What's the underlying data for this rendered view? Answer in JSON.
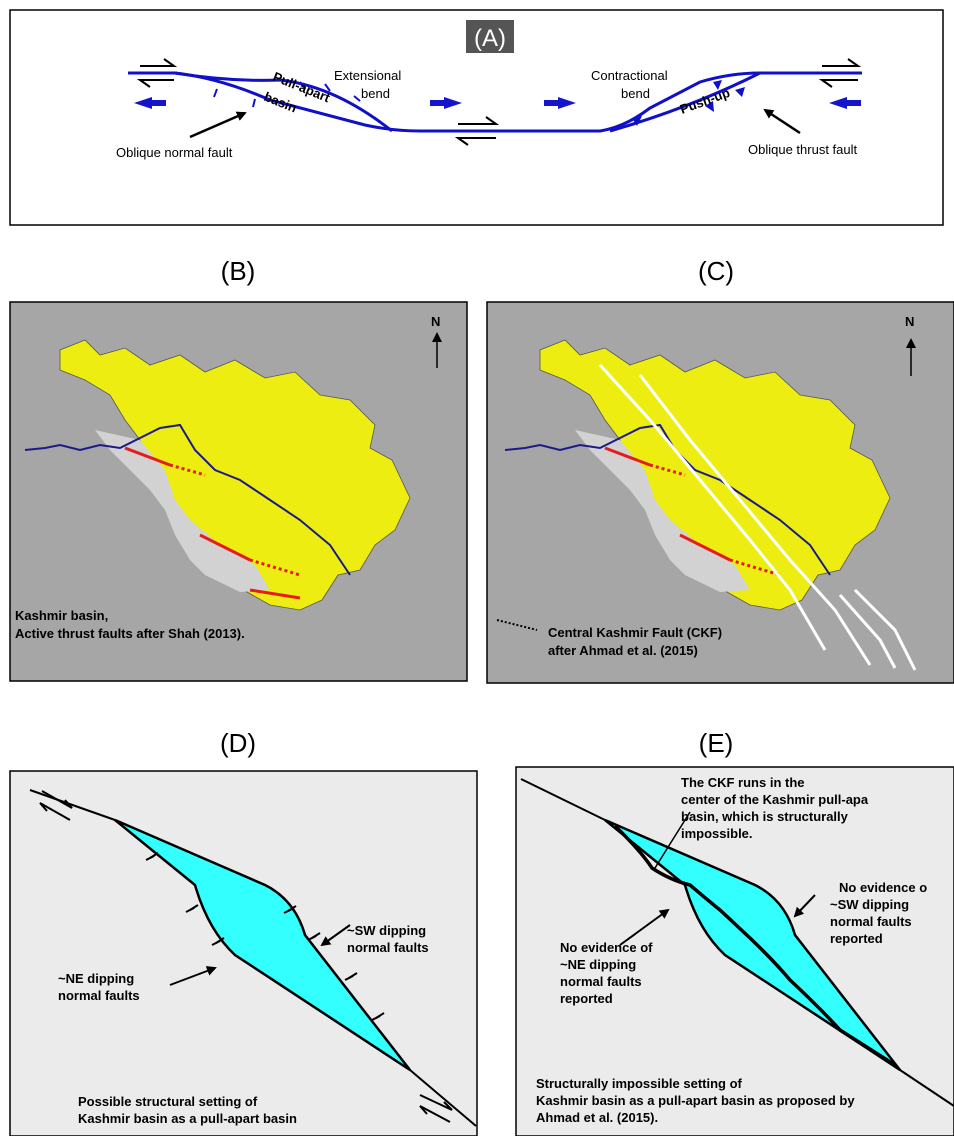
{
  "panel_a": {
    "tag": "(A)",
    "extensional_bend": [
      "Extensional",
      "bend"
    ],
    "contractional_bend": [
      "Contractional",
      "bend"
    ],
    "pull_apart": [
      "Pull-apart",
      "basin"
    ],
    "push_up": "Push-up",
    "oblique_normal_fault": "Oblique normal fault",
    "oblique_thrust_fault": "Oblique thrust fault"
  },
  "panel_b": {
    "title": "(B)",
    "north": "N",
    "caption": [
      "Kashmir basin,",
      "Active thrust faults after Shah (2013)."
    ]
  },
  "panel_c": {
    "title": "(C)",
    "north": "N",
    "caption": [
      "Central Kashmir Fault (CKF)",
      "after Ahmad et al. (2015)"
    ]
  },
  "panel_d": {
    "title": "(D)",
    "sw_label": [
      "~SW dipping",
      "normal faults"
    ],
    "ne_label": [
      "~NE dipping",
      "normal faults"
    ],
    "caption": [
      "Possible structural setting of",
      "Kashmir basin as a pull-apart basin"
    ]
  },
  "panel_e": {
    "title": "(E)",
    "ckf_label": [
      "The CKF runs in the",
      "center of the Kashmir pull-apa",
      "basin, which is structurally",
      "impossible."
    ],
    "right_label": [
      "No evidence o",
      "~SW dipping",
      "normal faults",
      "reported"
    ],
    "left_label": [
      "No evidence of",
      "~NE dipping",
      "normal faults",
      "reported"
    ],
    "caption": [
      "Structurally impossible setting of",
      "Kashmir basin as a pull-apart basin as proposed by",
      "Ahmad et al. (2015)."
    ]
  },
  "colors": {
    "fault_blue": "#1010c8",
    "basin_yellow": "#eded12",
    "panel_gray": "#a6a6a6",
    "light_gray": "#d2d2d2",
    "cyan": "#33ffff",
    "red": "#e51c1c",
    "river": "#1a1a8c"
  }
}
